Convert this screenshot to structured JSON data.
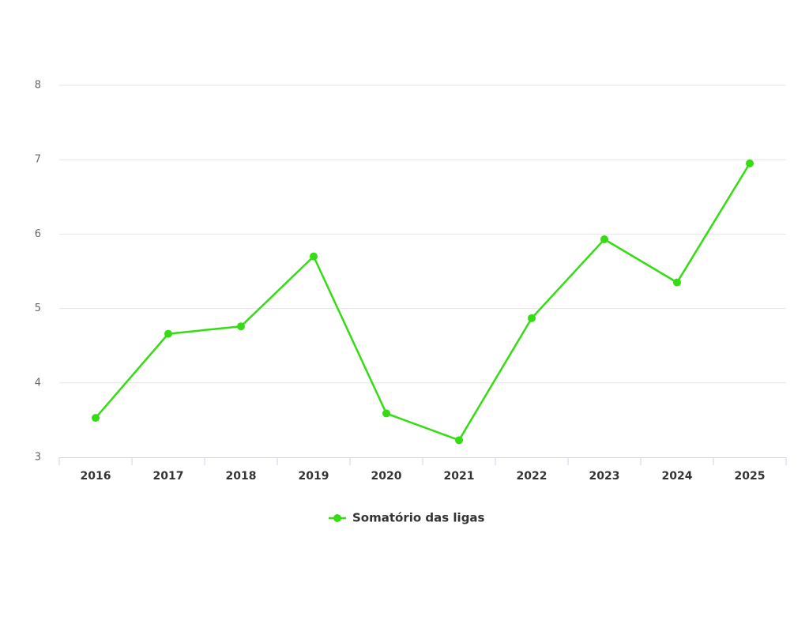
{
  "chart_data": {
    "type": "line",
    "categories": [
      "2016",
      "2017",
      "2018",
      "2019",
      "2020",
      "2021",
      "2022",
      "2023",
      "2024",
      "2025"
    ],
    "series": [
      {
        "name": "Somatório das ligas",
        "color": "#33dd11",
        "values": [
          3.53,
          4.66,
          4.76,
          5.7,
          3.59,
          3.23,
          4.87,
          5.93,
          5.35,
          6.95
        ]
      }
    ],
    "ylim": [
      3,
      8
    ],
    "yticks": [
      3,
      4,
      5,
      6,
      7,
      8
    ],
    "grid": true
  }
}
